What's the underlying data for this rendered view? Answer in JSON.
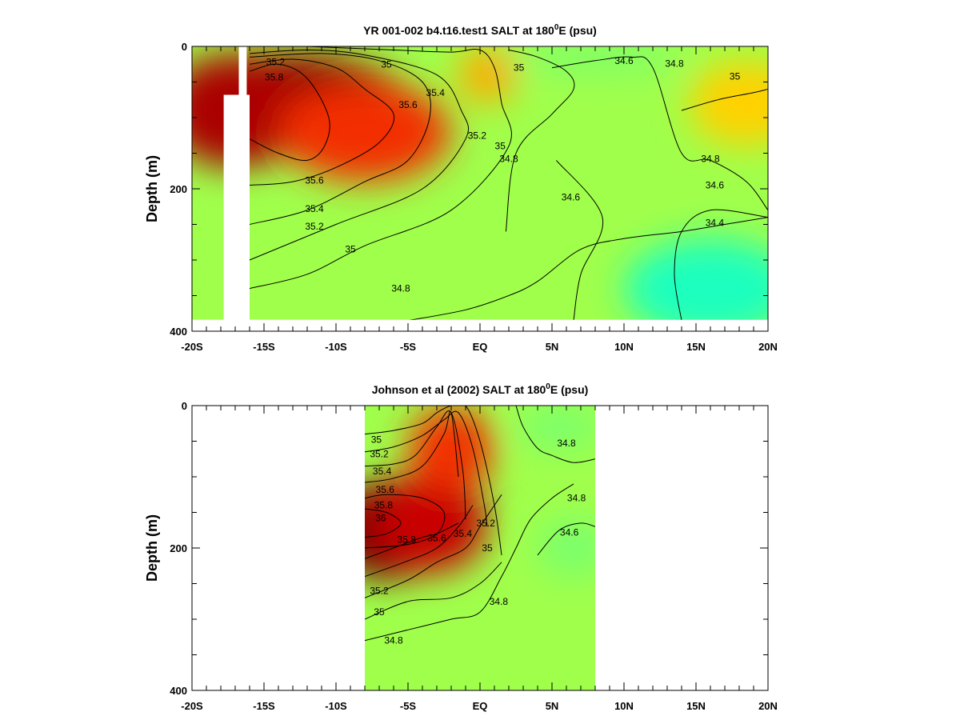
{
  "chart_data": [
    {
      "type": "heatmap",
      "title_main": "YR 001-002 b4.t16.test1 SALT at 180",
      "title_sup": "0",
      "title_end": "E (psu)",
      "xlabel": "",
      "ylabel": "Depth (m)",
      "xlim": [
        -20,
        20
      ],
      "ylim": [
        400,
        0
      ],
      "y_ticks": [
        "0",
        "200",
        "400"
      ],
      "x_ticks": [
        "-20S",
        "-15S",
        "-10S",
        "-5S",
        "EQ",
        "5N",
        "10N",
        "15N",
        "20N"
      ],
      "data_extent": {
        "x": [
          -20,
          20
        ],
        "depth": [
          0,
          384
        ]
      },
      "blank_gaps": [
        {
          "x": [
            -17.8,
            -16.0
          ],
          "depth_top": 68
        },
        {
          "x": [
            -16.75,
            -16.2
          ],
          "depth_top": 0,
          "depth_bottom": 400
        }
      ],
      "fill_blobs": [
        {
          "x": -13,
          "depth": 80,
          "rx": 8,
          "rd": 70,
          "value": 35.9
        },
        {
          "x": -17,
          "depth": 90,
          "rx": 5,
          "rd": 80,
          "value": 35.8
        },
        {
          "x": -8,
          "depth": 120,
          "rx": 6,
          "rd": 70,
          "value": 35.5
        },
        {
          "x": 0.5,
          "depth": 40,
          "rx": 2,
          "rd": 40,
          "value": 35.2
        },
        {
          "x": 8,
          "depth": 15,
          "rx": 6,
          "rd": 20,
          "value": 34.6
        },
        {
          "x": 18.5,
          "depth": 80,
          "rx": 4,
          "rd": 60,
          "value": 35.1
        },
        {
          "x": 16,
          "depth": 340,
          "rx": 6,
          "rd": 70,
          "value": 34.35
        }
      ],
      "contours": [
        {
          "value": 35.8,
          "x": [
            -16,
            -14,
            -12,
            -10.5,
            -10.8,
            -12,
            -14,
            -16
          ],
          "depth": [
            35,
            25,
            45,
            100,
            140,
            160,
            150,
            130
          ]
        },
        {
          "value": 35.6,
          "x": [
            -16,
            -13,
            -10,
            -8,
            -6,
            -7,
            -10,
            -13,
            -16
          ],
          "depth": [
            25,
            18,
            30,
            60,
            95,
            135,
            170,
            190,
            195
          ]
        },
        {
          "value": 35.4,
          "x": [
            -16,
            -11,
            -7,
            -4,
            -3.5,
            -5,
            -8,
            -12,
            -16
          ],
          "depth": [
            15,
            10,
            20,
            50,
            100,
            160,
            190,
            230,
            250
          ]
        },
        {
          "value": 35.2,
          "x": [
            -16,
            -12,
            -8,
            -3,
            -1.3,
            -1,
            -4,
            -10,
            -16
          ],
          "depth": [
            10,
            5,
            12,
            40,
            90,
            130,
            200,
            250,
            300
          ]
        },
        {
          "value": 35.0,
          "x": [
            -12,
            -6,
            -2,
            0,
            1,
            1.5,
            2,
            -2,
            -8,
            -12,
            -16
          ],
          "depth": [
            0,
            5,
            8,
            5,
            30,
            80,
            140,
            230,
            280,
            320,
            340
          ]
        },
        {
          "value": 34.8,
          "x": [
            -5,
            -1,
            2,
            4,
            7,
            10,
            14,
            17,
            20
          ],
          "depth": [
            385,
            370,
            350,
            330,
            285,
            270,
            260,
            250,
            240
          ]
        },
        {
          "value": 34.8,
          "x": [
            2,
            4,
            6,
            6.5,
            5,
            2.5,
            1.8
          ],
          "depth": [
            5,
            15,
            35,
            60,
            95,
            150,
            260
          ]
        },
        {
          "value": 34.8,
          "x": [
            14,
            16.5,
            19,
            20
          ],
          "depth": [
            90,
            75,
            65,
            60
          ]
        },
        {
          "value": 34.6,
          "x": [
            5,
            8,
            10.5,
            12,
            14,
            16,
            18.5,
            20
          ],
          "depth": [
            30,
            20,
            15,
            30,
            150,
            160,
            190,
            230
          ]
        },
        {
          "value": 34.6,
          "x": [
            5.3,
            8.5,
            7,
            6.5
          ],
          "depth": [
            160,
            240,
            320,
            385
          ]
        },
        {
          "value": 34.4,
          "x": [
            20,
            16,
            14,
            13.5,
            14
          ],
          "depth": [
            240,
            230,
            260,
            320,
            385
          ]
        }
      ],
      "contour_labels": [
        {
          "text": "35.2",
          "x": -14.2,
          "depth": 22
        },
        {
          "text": "35",
          "x": -6.5,
          "depth": 25
        },
        {
          "text": "35.8",
          "x": -14.3,
          "depth": 43
        },
        {
          "text": "35.6",
          "x": -5.0,
          "depth": 82
        },
        {
          "text": "35.4",
          "x": -3.1,
          "depth": 65
        },
        {
          "text": "35",
          "x": 2.7,
          "depth": 30
        },
        {
          "text": "34.6",
          "x": 10.0,
          "depth": 20
        },
        {
          "text": "34.8",
          "x": 13.5,
          "depth": 24
        },
        {
          "text": "35",
          "x": 17.7,
          "depth": 42
        },
        {
          "text": "35.2",
          "x": -0.2,
          "depth": 125
        },
        {
          "text": "35",
          "x": 1.4,
          "depth": 140
        },
        {
          "text": "34.8",
          "x": 2.0,
          "depth": 158
        },
        {
          "text": "34.8",
          "x": 16.0,
          "depth": 158
        },
        {
          "text": "34.6",
          "x": 16.3,
          "depth": 195
        },
        {
          "text": "34.6",
          "x": 6.3,
          "depth": 212
        },
        {
          "text": "35.6",
          "x": -11.5,
          "depth": 188
        },
        {
          "text": "35.4",
          "x": -11.5,
          "depth": 228
        },
        {
          "text": "35.2",
          "x": -11.5,
          "depth": 253
        },
        {
          "text": "35",
          "x": -9.0,
          "depth": 285
        },
        {
          "text": "34.8",
          "x": -5.5,
          "depth": 340
        },
        {
          "text": "34.4",
          "x": 16.3,
          "depth": 248
        }
      ]
    },
    {
      "type": "heatmap",
      "title_main": "Johnson et al (2002) SALT at 180",
      "title_sup": "0",
      "title_end": "E (psu)",
      "xlabel": "",
      "ylabel": "Depth (m)",
      "xlim": [
        -20,
        20
      ],
      "ylim": [
        400,
        0
      ],
      "y_ticks": [
        "0",
        "200",
        "400"
      ],
      "x_ticks": [
        "-20S",
        "-15S",
        "-10S",
        "-5S",
        "EQ",
        "5N",
        "10N",
        "15N",
        "20N"
      ],
      "data_extent": {
        "x": [
          -8,
          8
        ],
        "depth": [
          0,
          400
        ]
      },
      "blank_gaps": [],
      "fill_blobs": [
        {
          "x": -6.5,
          "depth": 175,
          "rx": 4,
          "rd": 70,
          "value": 36.0
        },
        {
          "x": -3.5,
          "depth": 165,
          "rx": 4,
          "rd": 70,
          "value": 35.7
        },
        {
          "x": -2,
          "depth": 60,
          "rx": 3,
          "rd": 60,
          "value": 35.5
        },
        {
          "x": 5.5,
          "depth": 30,
          "rx": 3,
          "rd": 30,
          "value": 34.6
        },
        {
          "x": 6.5,
          "depth": 200,
          "rx": 2.5,
          "rd": 40,
          "value": 34.6
        }
      ],
      "contours": [
        {
          "value": 35.0,
          "x": [
            -8,
            -6,
            -4,
            -3,
            -2,
            -1,
            0,
            1,
            1.5
          ],
          "depth": [
            40,
            35,
            25,
            10,
            0,
            0,
            50,
            140,
            210
          ]
        },
        {
          "value": 35.2,
          "x": [
            -8,
            -6,
            -4,
            -2.5,
            -1.5,
            -0.5,
            0.3,
            0.5
          ],
          "depth": [
            65,
            58,
            42,
            20,
            10,
            60,
            140,
            170
          ]
        },
        {
          "value": 35.4,
          "x": [
            -8,
            -6,
            -4.5,
            -3,
            -2,
            -1.2,
            -1
          ],
          "depth": [
            85,
            82,
            70,
            30,
            10,
            90,
            160
          ]
        },
        {
          "value": 35.6,
          "x": [
            -8,
            -6,
            -4,
            -2.5,
            -2,
            -1.5
          ],
          "depth": [
            108,
            102,
            85,
            40,
            10,
            100
          ]
        },
        {
          "value": 35.8,
          "x": [
            -8,
            -6.5,
            -4,
            -2.5,
            -3,
            -5,
            -8
          ],
          "depth": [
            130,
            125,
            130,
            150,
            180,
            195,
            200
          ]
        },
        {
          "value": 36.0,
          "x": [
            -8,
            -6.5,
            -5.5,
            -6.5,
            -8
          ],
          "depth": [
            145,
            150,
            165,
            180,
            185
          ]
        },
        {
          "value": 35.6,
          "x": [
            -8,
            -6,
            -4,
            -3,
            -1.5
          ],
          "depth": [
            215,
            200,
            185,
            180,
            165
          ]
        },
        {
          "value": 35.4,
          "x": [
            -8,
            -5,
            -3,
            -1.5,
            -0.5
          ],
          "depth": [
            240,
            218,
            200,
            170,
            140
          ]
        },
        {
          "value": 35.2,
          "x": [
            -8,
            -5,
            -3,
            -1,
            0,
            1,
            1.5
          ],
          "depth": [
            270,
            245,
            220,
            200,
            170,
            140,
            125
          ]
        },
        {
          "value": 35.0,
          "x": [
            -8,
            -5,
            -2,
            0,
            1.5
          ],
          "depth": [
            300,
            275,
            270,
            250,
            220
          ]
        },
        {
          "value": 34.8,
          "x": [
            -8,
            -5,
            -2,
            0,
            1.5,
            2.5,
            3.5,
            5,
            6.5
          ],
          "depth": [
            330,
            315,
            300,
            290,
            240,
            200,
            160,
            130,
            110
          ]
        },
        {
          "value": 34.8,
          "x": [
            2.5,
            3,
            4,
            5,
            6.5,
            8
          ],
          "depth": [
            0,
            30,
            60,
            70,
            80,
            75
          ]
        },
        {
          "value": 34.6,
          "x": [
            4,
            5.5,
            7,
            8
          ],
          "depth": [
            210,
            175,
            165,
            170
          ]
        }
      ],
      "contour_labels": [
        {
          "text": "35",
          "x": -7.2,
          "depth": 48
        },
        {
          "text": "35.2",
          "x": -7.0,
          "depth": 68
        },
        {
          "text": "35.4",
          "x": -6.8,
          "depth": 92
        },
        {
          "text": "35.6",
          "x": -6.6,
          "depth": 118
        },
        {
          "text": "35.8",
          "x": -6.7,
          "depth": 140
        },
        {
          "text": "36",
          "x": -6.9,
          "depth": 158
        },
        {
          "text": "35.8",
          "x": -5.1,
          "depth": 188
        },
        {
          "text": "35.6",
          "x": -3.0,
          "depth": 186
        },
        {
          "text": "35.4",
          "x": -1.2,
          "depth": 180
        },
        {
          "text": "35.2",
          "x": 0.4,
          "depth": 165
        },
        {
          "text": "35",
          "x": 0.5,
          "depth": 200
        },
        {
          "text": "34.8",
          "x": 1.3,
          "depth": 275
        },
        {
          "text": "35.2",
          "x": -7.0,
          "depth": 260
        },
        {
          "text": "35",
          "x": -7.0,
          "depth": 290
        },
        {
          "text": "34.8",
          "x": -6.0,
          "depth": 330
        },
        {
          "text": "34.8",
          "x": 6.0,
          "depth": 53
        },
        {
          "text": "34.8",
          "x": 6.7,
          "depth": 130
        },
        {
          "text": "34.6",
          "x": 6.2,
          "depth": 178
        }
      ]
    }
  ]
}
